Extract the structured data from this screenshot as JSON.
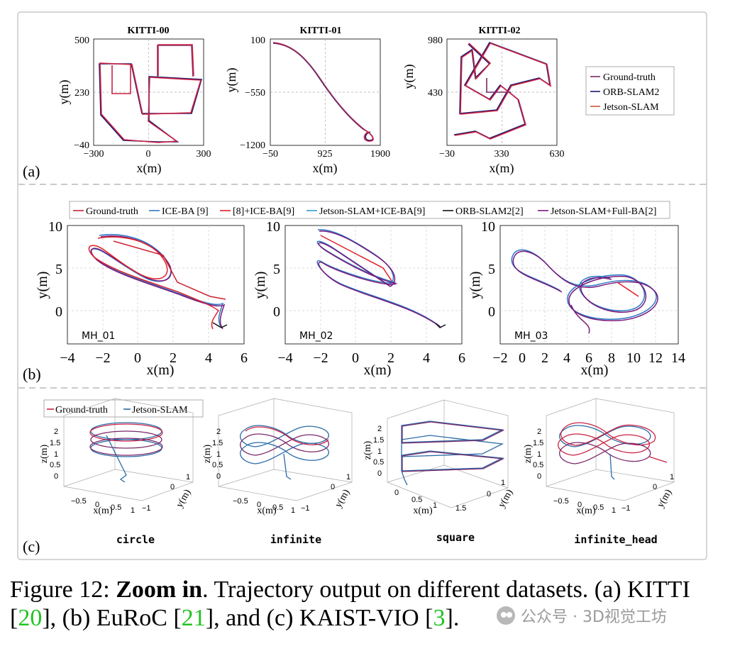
{
  "panel_a": {
    "label": "(a)",
    "plots": [
      {
        "title": "KITTI-00",
        "ylabel": "y(m)",
        "xlabel": "x(m)",
        "yticks": [
          "500",
          "230",
          "−40"
        ],
        "xticks": [
          "−300",
          "0",
          "300"
        ]
      },
      {
        "title": "KITTI-01",
        "ylabel": "y(m)",
        "xlabel": "x(m)",
        "yticks": [
          "100",
          "−550",
          "−1200"
        ],
        "xticks": [
          "−50",
          "925",
          "1900"
        ]
      },
      {
        "title": "KITTI-02",
        "ylabel": "y(m)",
        "xlabel": "x(m)",
        "yticks": [
          "980",
          "430",
          "−120"
        ],
        "xticks": [
          "−30",
          "330",
          "630"
        ]
      }
    ],
    "legend": [
      "Ground-truth",
      "ORB-SLAM2",
      "Jetson-SLAM"
    ]
  },
  "panel_b": {
    "label": "(b)",
    "legend": [
      {
        "text": "Ground-truth",
        "color": "#cc2233"
      },
      {
        "text": "ICE-BA [9]",
        "color": "#2b78c8"
      },
      {
        "text": "[8]+ICE-BA[9]",
        "color": "#e0202a"
      },
      {
        "text": "Jetson-SLAM+ICE-BA[9]",
        "color": "#3399cc"
      },
      {
        "text": "ORB-SLAM2[2]",
        "color": "#111111"
      },
      {
        "text": "Jetson-SLAM+Full-BA[2]",
        "color": "#7a1a7a"
      }
    ],
    "plots": [
      {
        "name": "MH_01",
        "ylabel": "y(m)",
        "xlabel": "x(m)",
        "yticks": [
          "10",
          "5",
          "0"
        ],
        "xticks": [
          "−4",
          "−2",
          "0",
          "2",
          "4",
          "6"
        ]
      },
      {
        "name": "MH_02",
        "ylabel": "y(m)",
        "xlabel": "x(m)",
        "yticks": [
          "10",
          "5",
          "0"
        ],
        "xticks": [
          "−4",
          "−2",
          "0",
          "2",
          "4",
          "6"
        ]
      },
      {
        "name": "MH_03",
        "ylabel": "y(m)",
        "xlabel": "x(m)",
        "yticks": [
          "10",
          "5",
          "0"
        ],
        "xticks": [
          "−2",
          "0",
          "2",
          "4",
          "6",
          "8",
          "10",
          "12",
          "14"
        ]
      }
    ]
  },
  "panel_c": {
    "label": "(c)",
    "legend": [
      "Ground-truth",
      "Jetson-SLAM"
    ],
    "plots": [
      {
        "name": "circle",
        "zlabel": "z(m)",
        "xlabel": "x(m)",
        "ylabel": "y(m)"
      },
      {
        "name": "infinite",
        "zlabel": "z(m)",
        "xlabel": "x(m)",
        "ylabel": "y(m)"
      },
      {
        "name": "square",
        "zlabel": "z(m)",
        "xlabel": "x(m)",
        "ylabel": "y(m)"
      },
      {
        "name": "infinite_head",
        "zlabel": "z(m)",
        "xlabel": "x(m)",
        "ylabel": "y(m)"
      }
    ]
  },
  "caption": {
    "figure_label": "Figure 12:",
    "bold": "Zoom in",
    "text1": ". Trajectory output on different datasets. (a) KITTI",
    "ref1": "20",
    "text2": ", (b) EuRoC ",
    "ref2": "21",
    "text3": ", and (c) KAIST-VIO ",
    "ref3": "3",
    "text4": "."
  },
  "watermark": "公众号 · 3D视觉工坊",
  "colors": {
    "gt": "#cc2244",
    "orb": "#1a1a6e",
    "jetson": "#7a2a6a",
    "ice": "#2b78c8",
    "frame": "#c8c8c8"
  }
}
